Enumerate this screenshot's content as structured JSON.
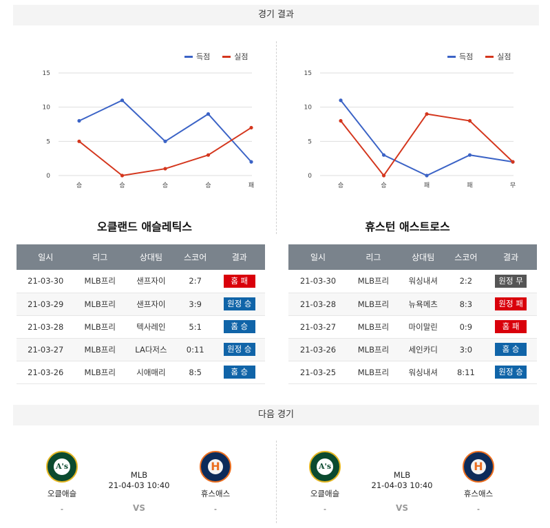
{
  "sections": {
    "results_title": "경기 결과",
    "next_title": "다음 경기"
  },
  "legend": {
    "scored": "득점",
    "allowed": "실점"
  },
  "colors": {
    "scored": "#3b63c6",
    "allowed": "#d4361d",
    "loss": "#d9000b",
    "win": "#1064a8",
    "draw": "#555555"
  },
  "chart_data": [
    {
      "type": "line",
      "categories": [
        "승",
        "승",
        "승",
        "승",
        "패"
      ],
      "series": [
        {
          "name": "득점",
          "values": [
            8,
            11,
            5,
            9,
            2
          ]
        },
        {
          "name": "실점",
          "values": [
            5,
            0,
            1,
            3,
            7
          ]
        }
      ],
      "yticks": [
        0,
        5,
        10,
        15
      ],
      "ylim": [
        0,
        15
      ],
      "grid": true,
      "legend": "top-right"
    },
    {
      "type": "line",
      "categories": [
        "승",
        "승",
        "패",
        "패",
        "무"
      ],
      "series": [
        {
          "name": "득점",
          "values": [
            11,
            3,
            0,
            3,
            2
          ]
        },
        {
          "name": "실점",
          "values": [
            8,
            0,
            9,
            8,
            2
          ]
        }
      ],
      "yticks": [
        0,
        5,
        10,
        15
      ],
      "ylim": [
        0,
        15
      ],
      "grid": true,
      "legend": "top-right"
    }
  ],
  "teams": [
    {
      "title": "오클랜드 애슬레틱스",
      "headers": [
        "일시",
        "리그",
        "상대팀",
        "스코어",
        "결과"
      ],
      "rows": [
        {
          "date": "21-03-30",
          "league": "MLB프리",
          "opponent": "샌프자이",
          "score": "2:7",
          "result": "홈 패",
          "kind": "loss"
        },
        {
          "date": "21-03-29",
          "league": "MLB프리",
          "opponent": "샌프자이",
          "score": "3:9",
          "result": "원정 승",
          "kind": "win"
        },
        {
          "date": "21-03-28",
          "league": "MLB프리",
          "opponent": "텍사레인",
          "score": "5:1",
          "result": "홈 승",
          "kind": "win"
        },
        {
          "date": "21-03-27",
          "league": "MLB프리",
          "opponent": "LA다저스",
          "score": "0:11",
          "result": "원정 승",
          "kind": "win"
        },
        {
          "date": "21-03-26",
          "league": "MLB프리",
          "opponent": "시애매리",
          "score": "8:5",
          "result": "홈 승",
          "kind": "win"
        }
      ]
    },
    {
      "title": "휴스턴 애스트로스",
      "headers": [
        "일시",
        "리그",
        "상대팀",
        "스코어",
        "결과"
      ],
      "rows": [
        {
          "date": "21-03-30",
          "league": "MLB프리",
          "opponent": "워싱내셔",
          "score": "2:2",
          "result": "원정 무",
          "kind": "draw"
        },
        {
          "date": "21-03-28",
          "league": "MLB프리",
          "opponent": "뉴욕메츠",
          "score": "8:3",
          "result": "원정 패",
          "kind": "loss"
        },
        {
          "date": "21-03-27",
          "league": "MLB프리",
          "opponent": "마이말린",
          "score": "0:9",
          "result": "홈 패",
          "kind": "loss"
        },
        {
          "date": "21-03-26",
          "league": "MLB프리",
          "opponent": "세인카디",
          "score": "3:0",
          "result": "홈 승",
          "kind": "win"
        },
        {
          "date": "21-03-25",
          "league": "MLB프리",
          "opponent": "워싱내셔",
          "score": "8:11",
          "result": "원정 승",
          "kind": "win"
        }
      ]
    }
  ],
  "next_games": [
    {
      "home": {
        "name": "오클애슬",
        "score": "-",
        "logo_icon": "athletics-logo-icon",
        "logo_text": "A's"
      },
      "away": {
        "name": "휴스애스",
        "score": "-",
        "logo_icon": "astros-logo-icon",
        "logo_text": "H"
      },
      "league": "MLB",
      "datetime": "21-04-03 10:40",
      "vs": "VS"
    },
    {
      "home": {
        "name": "오클애슬",
        "score": "-",
        "logo_icon": "athletics-logo-icon",
        "logo_text": "A's"
      },
      "away": {
        "name": "휴스애스",
        "score": "-",
        "logo_icon": "astros-logo-icon",
        "logo_text": "H"
      },
      "league": "MLB",
      "datetime": "21-04-03 10:40",
      "vs": "VS"
    }
  ]
}
